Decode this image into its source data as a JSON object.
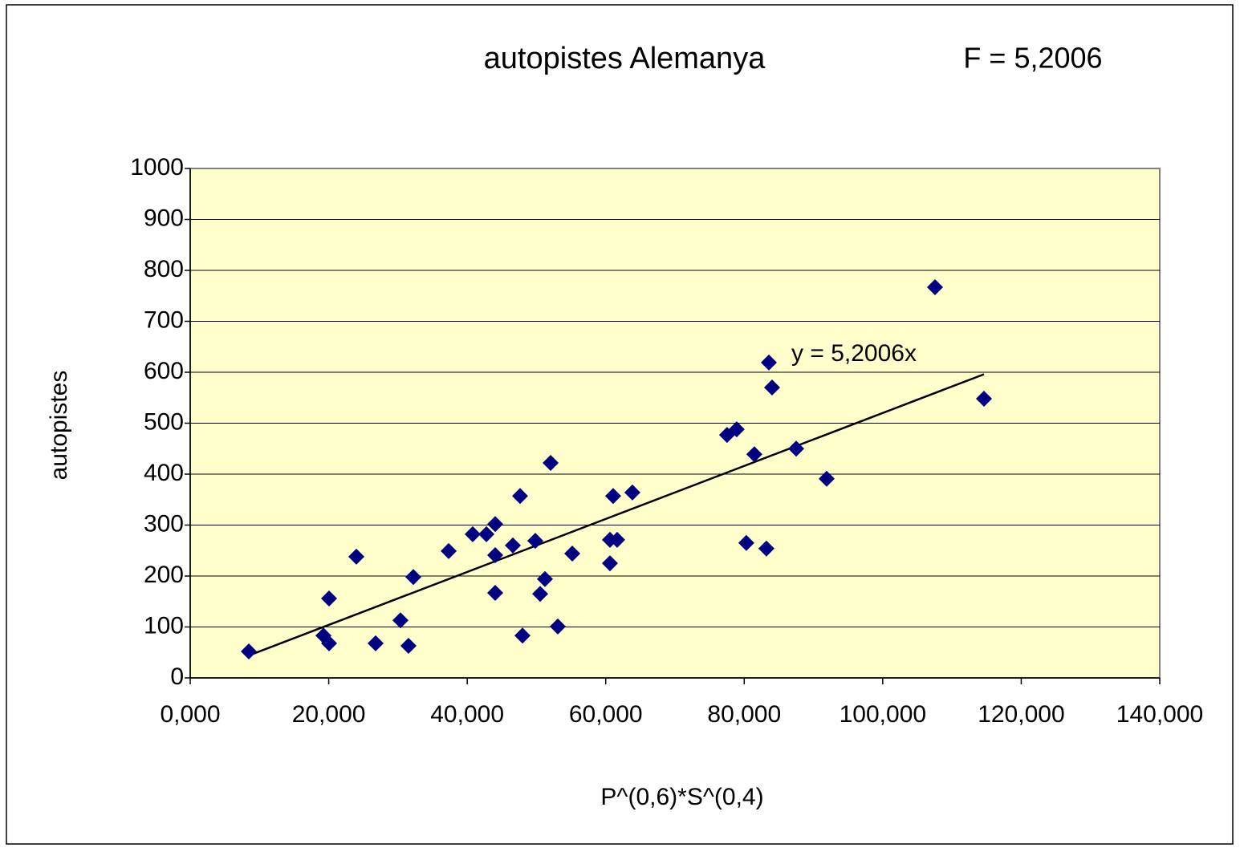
{
  "chart_data": {
    "type": "scatter",
    "title": "autopistes Alemanya",
    "subtitle": "F = 5,2006",
    "x_label": "P^(0,6)*S^(0,4)",
    "y_label": "autopistes",
    "x": [
      8460,
      19240,
      20050,
      20050,
      23990,
      26770,
      30360,
      31520,
      32220,
      37320,
      40790,
      42770,
      44040,
      44040,
      44040,
      46590,
      47630,
      47980,
      49830,
      50530,
      51220,
      52040,
      53080,
      55170,
      60610,
      60610,
      61070,
      61650,
      63850,
      77520,
      78910,
      80300,
      81460,
      83200,
      83560,
      84020,
      87500,
      91900,
      107550,
      114620
    ],
    "values": [
      52,
      83,
      68,
      156,
      238,
      68,
      113,
      63,
      198,
      249,
      282,
      282,
      302,
      241,
      167,
      260,
      357,
      83,
      269,
      165,
      194,
      422,
      101,
      244,
      225,
      271,
      357,
      271,
      364,
      477,
      488,
      265,
      439,
      254,
      619,
      570,
      450,
      391,
      767,
      548
    ],
    "color": "#000080",
    "trendline": {
      "label": "y = 5,2006x",
      "slope": 0.0052006
    },
    "xlim": [
      0,
      140000
    ],
    "xticks": [
      {
        "value": 0,
        "label": "0,000"
      },
      {
        "value": 20000,
        "label": "20,000"
      },
      {
        "value": 40000,
        "label": "40,000"
      },
      {
        "value": 60000,
        "label": "60,000"
      },
      {
        "value": 80000,
        "label": "80,000"
      },
      {
        "value": 100000,
        "label": "100,000"
      },
      {
        "value": 120000,
        "label": "120,000"
      },
      {
        "value": 140000,
        "label": "140,000"
      }
    ],
    "ylim": [
      0,
      1000
    ],
    "yticks": [
      0,
      100,
      200,
      300,
      400,
      500,
      600,
      700,
      800,
      900,
      1000
    ],
    "grid": true
  }
}
